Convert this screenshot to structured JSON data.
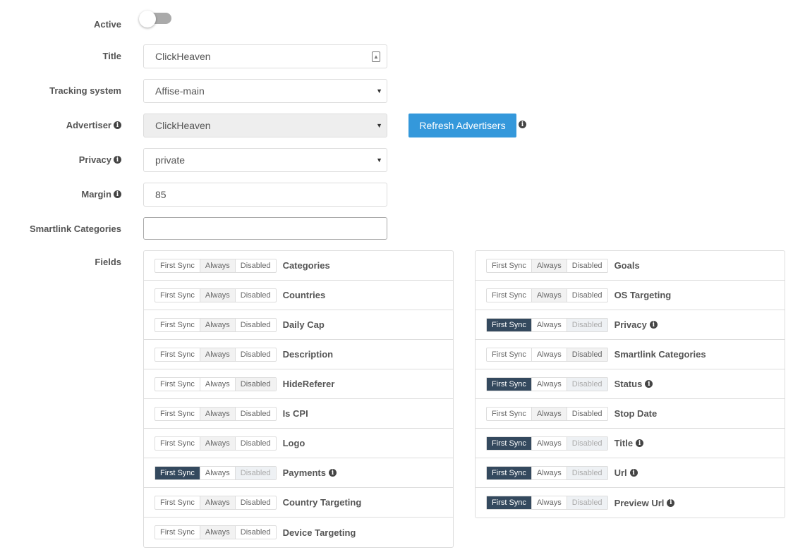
{
  "form": {
    "active_label": "Active",
    "active_value": false,
    "title_label": "Title",
    "title_value": "ClickHeaven",
    "tracking_label": "Tracking system",
    "tracking_value": "Affise-main",
    "advertiser_label": "Advertiser",
    "advertiser_value": "ClickHeaven",
    "refresh_label": "Refresh Advertisers",
    "privacy_label": "Privacy",
    "privacy_value": "private",
    "margin_label": "Margin",
    "margin_value": "85",
    "smartlink_label": "Smartlink Categories",
    "smartlink_value": "",
    "fields_label": "Fields"
  },
  "options": [
    "First Sync",
    "Always",
    "Disabled"
  ],
  "colors": {
    "accent": "#3498db",
    "first_sync": "#34495e"
  },
  "fields_left": [
    {
      "name": "Categories",
      "mode": "Always",
      "info": false
    },
    {
      "name": "Countries",
      "mode": "Always",
      "info": false
    },
    {
      "name": "Daily Cap",
      "mode": "Always",
      "info": false
    },
    {
      "name": "Description",
      "mode": "Always",
      "info": false
    },
    {
      "name": "HideReferer",
      "mode": "Disabled",
      "info": false
    },
    {
      "name": "Is CPI",
      "mode": "Always",
      "info": false
    },
    {
      "name": "Logo",
      "mode": "Always",
      "info": false
    },
    {
      "name": "Payments",
      "mode": "First Sync",
      "info": true
    },
    {
      "name": "Country Targeting",
      "mode": "Always",
      "info": false
    },
    {
      "name": "Device Targeting",
      "mode": "Always",
      "info": false
    }
  ],
  "fields_right": [
    {
      "name": "Goals",
      "mode": "Always",
      "info": false
    },
    {
      "name": "OS Targeting",
      "mode": "Always",
      "info": false
    },
    {
      "name": "Privacy",
      "mode": "First Sync",
      "info": true
    },
    {
      "name": "Smartlink Categories",
      "mode": "Disabled",
      "info": false
    },
    {
      "name": "Status",
      "mode": "First Sync",
      "info": true
    },
    {
      "name": "Stop Date",
      "mode": "Always",
      "info": false
    },
    {
      "name": "Title",
      "mode": "First Sync",
      "info": true
    },
    {
      "name": "Url",
      "mode": "First Sync",
      "info": true
    },
    {
      "name": "Preview Url",
      "mode": "First Sync",
      "info": true
    }
  ]
}
